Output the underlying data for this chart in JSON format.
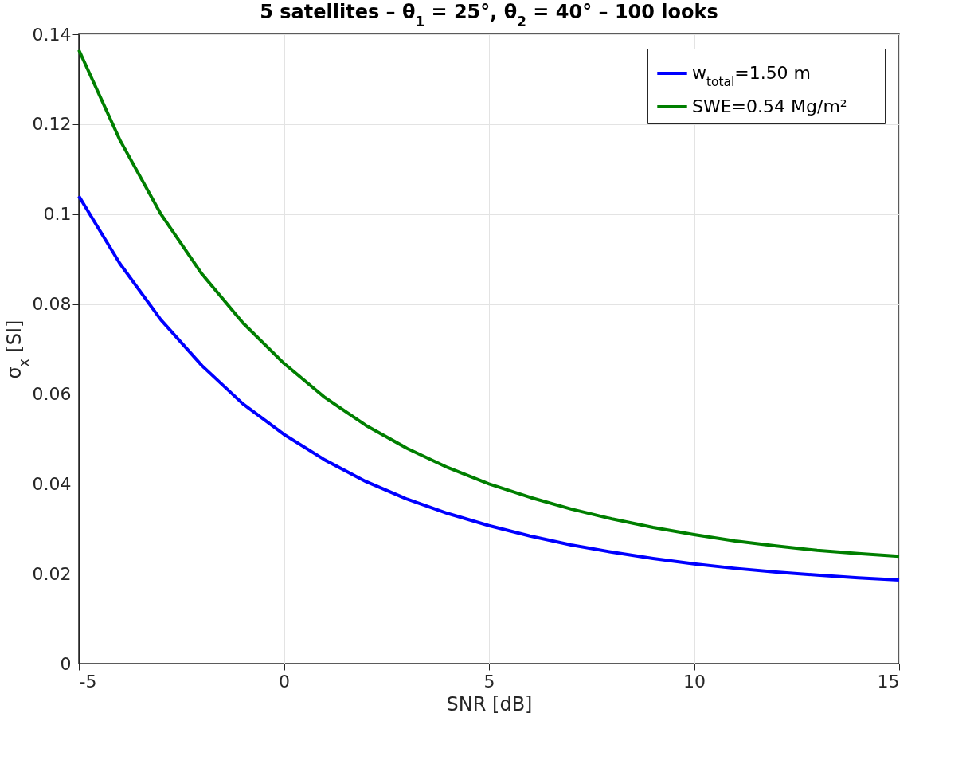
{
  "chart_data": {
    "type": "line",
    "title": "5 satellites – θ$_{1}$ = 25°, θ$_{2}$ = 40° – 100 looks",
    "xlabel": "SNR [dB]",
    "ylabel": "σ$_{x}$ [SI]",
    "x": [
      -5,
      -4,
      -3,
      -2,
      -1,
      0,
      1,
      2,
      3,
      4,
      5,
      6,
      7,
      8,
      9,
      10,
      11,
      12,
      13,
      14,
      15
    ],
    "series": [
      {
        "name": "w$_{total}$=1.50 m",
        "color": "#0000ff",
        "values": [
          0.104,
          0.089,
          0.0765,
          0.0663,
          0.0578,
          0.051,
          0.0453,
          0.0405,
          0.0366,
          0.0334,
          0.0307,
          0.0284,
          0.0264,
          0.0248,
          0.0234,
          0.0222,
          0.0212,
          0.0204,
          0.0197,
          0.0191,
          0.0186
        ]
      },
      {
        "name": "SWE=0.54 Mg/m²",
        "color": "#007f00",
        "values": [
          0.1365,
          0.1165,
          0.1,
          0.0867,
          0.0758,
          0.0668,
          0.0592,
          0.053,
          0.0479,
          0.0436,
          0.04,
          0.037,
          0.0344,
          0.0322,
          0.0303,
          0.0287,
          0.0273,
          0.0262,
          0.0252,
          0.0245,
          0.0239
        ]
      }
    ],
    "xlim": [
      -5,
      15
    ],
    "xticks": [
      -5,
      0,
      5,
      10,
      15
    ],
    "ylim": [
      0,
      0.14
    ],
    "yticks": [
      0,
      0.02,
      0.04,
      0.06,
      0.08,
      0.1,
      0.12,
      0.14
    ],
    "grid": true,
    "legend": "top right",
    "line_style": "solid",
    "marker": "none"
  }
}
